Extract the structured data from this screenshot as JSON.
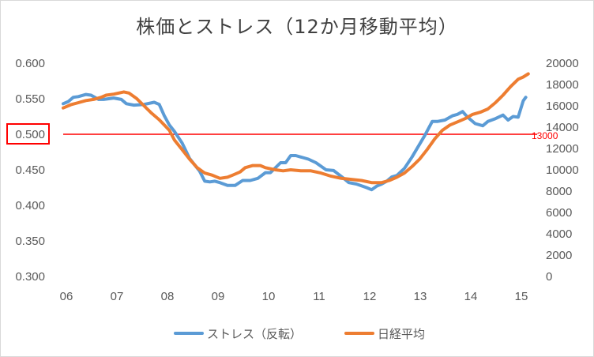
{
  "chart_data": {
    "type": "line",
    "title": "株価とストレス（12か月移動平均）",
    "x_ticks": [
      "06",
      "07",
      "08",
      "09",
      "10",
      "11",
      "12",
      "13",
      "14",
      "15"
    ],
    "y_left": {
      "ticks": [
        "0.300",
        "0.350",
        "0.400",
        "0.450",
        "0.500",
        "0.550",
        "0.600"
      ],
      "range": [
        0.3,
        0.6
      ]
    },
    "y_right": {
      "ticks": [
        "0",
        "2000",
        "4000",
        "6000",
        "8000",
        "10000",
        "12000",
        "14000",
        "16000",
        "18000",
        "20000"
      ],
      "range": [
        0,
        20000
      ]
    },
    "grid": false,
    "legend_position": "bottom",
    "reference_line": {
      "axis": "y_left",
      "value": 0.5,
      "color": "#ff0000",
      "label": "13000",
      "highlighted_tick": "0.500"
    },
    "series": [
      {
        "name": "ストレス（反転）",
        "axis": "y_left",
        "color": "#5b9bd5",
        "x": [
          2006.0,
          2006.1,
          2006.2,
          2006.3,
          2006.45,
          2006.55,
          2006.7,
          2006.8,
          2007.0,
          2007.15,
          2007.25,
          2007.4,
          2007.6,
          2007.8,
          2007.9,
          2008.0,
          2008.1,
          2008.2,
          2008.35,
          2008.5,
          2008.7,
          2008.8,
          2008.9,
          2009.0,
          2009.1,
          2009.25,
          2009.4,
          2009.55,
          2009.7,
          2009.85,
          2010.0,
          2010.1,
          2010.3,
          2010.4,
          2010.5,
          2010.6,
          2010.7,
          2010.85,
          2011.0,
          2011.2,
          2011.35,
          2011.55,
          2011.65,
          2011.8,
          2012.0,
          2012.1,
          2012.2,
          2012.3,
          2012.4,
          2012.5,
          2012.6,
          2012.75,
          2012.9,
          2013.0,
          2013.15,
          2013.3,
          2013.4,
          2013.55,
          2013.7,
          2013.8,
          2013.9,
          2014.0,
          2014.15,
          2014.3,
          2014.4,
          2014.55,
          2014.7,
          2014.8,
          2014.9,
          2015.0,
          2015.1,
          2015.15
        ],
        "values": [
          0.543,
          0.546,
          0.552,
          0.553,
          0.556,
          0.555,
          0.549,
          0.549,
          0.551,
          0.549,
          0.543,
          0.541,
          0.542,
          0.545,
          0.542,
          0.526,
          0.513,
          0.504,
          0.488,
          0.466,
          0.448,
          0.434,
          0.433,
          0.434,
          0.432,
          0.428,
          0.428,
          0.435,
          0.435,
          0.438,
          0.446,
          0.446,
          0.46,
          0.46,
          0.47,
          0.47,
          0.468,
          0.465,
          0.46,
          0.45,
          0.449,
          0.438,
          0.432,
          0.43,
          0.425,
          0.422,
          0.427,
          0.43,
          0.434,
          0.44,
          0.442,
          0.452,
          0.468,
          0.48,
          0.498,
          0.518,
          0.518,
          0.52,
          0.526,
          0.528,
          0.532,
          0.524,
          0.515,
          0.512,
          0.518,
          0.522,
          0.527,
          0.52,
          0.525,
          0.524,
          0.547,
          0.552
        ]
      },
      {
        "name": "日経平均",
        "axis": "y_right",
        "color": "#ed7d31",
        "x": [
          2006.0,
          2006.15,
          2006.3,
          2006.45,
          2006.6,
          2006.75,
          2006.85,
          2007.0,
          2007.1,
          2007.2,
          2007.3,
          2007.45,
          2007.6,
          2007.75,
          2007.9,
          2008.0,
          2008.1,
          2008.2,
          2008.35,
          2008.5,
          2008.65,
          2008.8,
          2008.95,
          2009.1,
          2009.25,
          2009.35,
          2009.5,
          2009.6,
          2009.75,
          2009.9,
          2010.0,
          2010.2,
          2010.35,
          2010.5,
          2010.7,
          2010.9,
          2011.1,
          2011.3,
          2011.5,
          2011.7,
          2011.9,
          2012.1,
          2012.3,
          2012.45,
          2012.6,
          2012.75,
          2012.9,
          2013.05,
          2013.2,
          2013.35,
          2013.5,
          2013.65,
          2013.8,
          2013.95,
          2014.1,
          2014.25,
          2014.4,
          2014.55,
          2014.7,
          2014.85,
          2015.0,
          2015.1,
          2015.2
        ],
        "values": [
          15800,
          16100,
          16300,
          16500,
          16600,
          16800,
          17000,
          17100,
          17200,
          17300,
          17200,
          16700,
          16000,
          15300,
          14700,
          14200,
          13700,
          12800,
          11900,
          11000,
          10200,
          9700,
          9500,
          9200,
          9300,
          9500,
          9800,
          10200,
          10400,
          10400,
          10200,
          10000,
          9900,
          10000,
          9900,
          9900,
          9700,
          9400,
          9200,
          9100,
          9000,
          8800,
          8800,
          9000,
          9300,
          9700,
          10300,
          11000,
          11900,
          12900,
          13700,
          14200,
          14500,
          14800,
          15200,
          15400,
          15700,
          16300,
          17000,
          17800,
          18500,
          18700,
          19000
        ]
      }
    ]
  }
}
